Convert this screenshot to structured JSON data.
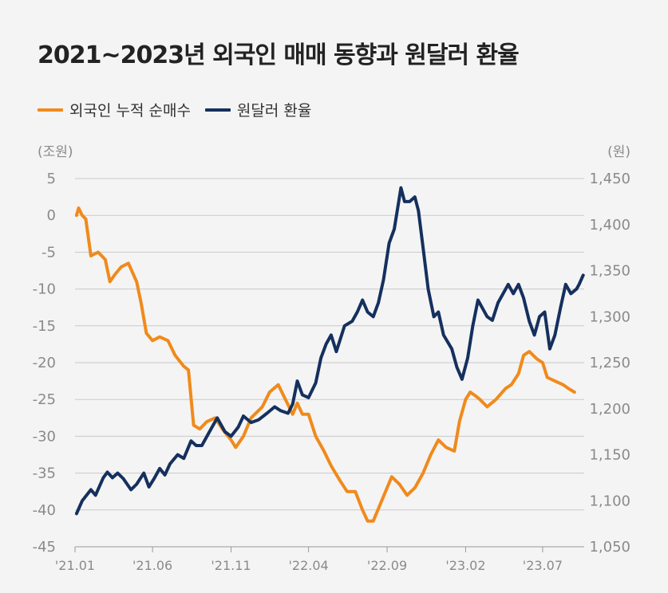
{
  "title": "2021~2023년 외국인 매매 동향과 원달러 환율",
  "chart_data": {
    "type": "line",
    "title": "2021~2023년 외국인 매매 동향과 원달러 환율",
    "legend_position": "top-left",
    "grid": true,
    "x_ticks": [
      "'21.01",
      "'21.06",
      "'21.11",
      "'22.04",
      "'22.09",
      "'23.02",
      "'23.07"
    ],
    "x_range": [
      "2021-01",
      "2023-09"
    ],
    "y_left": {
      "unit": "(조원)",
      "range": [
        -45,
        5
      ],
      "ticks": [
        5,
        0,
        -5,
        -10,
        -15,
        -20,
        -25,
        -30,
        -35,
        -40,
        -45
      ]
    },
    "y_right": {
      "unit": "(원)",
      "range": [
        1050,
        1450
      ],
      "ticks": [
        "1,450",
        "1,400",
        "1,350",
        "1,300",
        "1,250",
        "1,200",
        "1,150",
        "1,100",
        "1,050"
      ],
      "tick_values": [
        1450,
        1400,
        1350,
        1300,
        1250,
        1200,
        1150,
        1100,
        1050
      ]
    },
    "series": [
      {
        "name": "외국인 누적 순매수",
        "axis": "left",
        "color": "#f08a1c",
        "points": [
          [
            "2021-01-04",
            0
          ],
          [
            "2021-01-08",
            1
          ],
          [
            "2021-01-15",
            0
          ],
          [
            "2021-01-22",
            -0.5
          ],
          [
            "2021-02-01",
            -5.5
          ],
          [
            "2021-02-15",
            -5
          ],
          [
            "2021-03-01",
            -6
          ],
          [
            "2021-03-10",
            -9
          ],
          [
            "2021-03-20",
            -8
          ],
          [
            "2021-04-01",
            -7
          ],
          [
            "2021-04-15",
            -6.5
          ],
          [
            "2021-05-01",
            -9
          ],
          [
            "2021-05-10",
            -12
          ],
          [
            "2021-05-20",
            -16
          ],
          [
            "2021-06-01",
            -17
          ],
          [
            "2021-06-15",
            -16.5
          ],
          [
            "2021-07-01",
            -17
          ],
          [
            "2021-07-15",
            -19
          ],
          [
            "2021-08-01",
            -20.5
          ],
          [
            "2021-08-10",
            -21
          ],
          [
            "2021-08-20",
            -28.5
          ],
          [
            "2021-09-01",
            -29
          ],
          [
            "2021-09-15",
            -28
          ],
          [
            "2021-10-01",
            -27.5
          ],
          [
            "2021-10-15",
            -29
          ],
          [
            "2021-11-01",
            -30.5
          ],
          [
            "2021-11-10",
            -31.5
          ],
          [
            "2021-11-25",
            -30
          ],
          [
            "2021-12-10",
            -27.5
          ],
          [
            "2022-01-01",
            -26
          ],
          [
            "2022-01-15",
            -24
          ],
          [
            "2022-02-01",
            -23
          ],
          [
            "2022-02-15",
            -25
          ],
          [
            "2022-03-01",
            -27
          ],
          [
            "2022-03-10",
            -25.5
          ],
          [
            "2022-03-20",
            -27
          ],
          [
            "2022-04-01",
            -27
          ],
          [
            "2022-04-15",
            -30
          ],
          [
            "2022-05-01",
            -32
          ],
          [
            "2022-05-15",
            -34
          ],
          [
            "2022-06-01",
            -36
          ],
          [
            "2022-06-15",
            -37.5
          ],
          [
            "2022-07-01",
            -37.5
          ],
          [
            "2022-07-15",
            -40
          ],
          [
            "2022-07-25",
            -41.5
          ],
          [
            "2022-08-05",
            -41.5
          ],
          [
            "2022-08-20",
            -39
          ],
          [
            "2022-09-01",
            -37
          ],
          [
            "2022-09-10",
            -35.5
          ],
          [
            "2022-09-25",
            -36.5
          ],
          [
            "2022-10-10",
            -38
          ],
          [
            "2022-10-25",
            -37
          ],
          [
            "2022-11-10",
            -35
          ],
          [
            "2022-11-25",
            -32.5
          ],
          [
            "2022-12-10",
            -30.5
          ],
          [
            "2022-12-25",
            -31.5
          ],
          [
            "2023-01-10",
            -32
          ],
          [
            "2023-01-20",
            -28
          ],
          [
            "2023-02-01",
            -25
          ],
          [
            "2023-02-10",
            -24
          ],
          [
            "2023-02-20",
            -24.5
          ],
          [
            "2023-03-01",
            -25
          ],
          [
            "2023-03-15",
            -26
          ],
          [
            "2023-04-01",
            -25
          ],
          [
            "2023-04-20",
            -23.5
          ],
          [
            "2023-05-01",
            -23
          ],
          [
            "2023-05-15",
            -21.5
          ],
          [
            "2023-05-25",
            -19
          ],
          [
            "2023-06-05",
            -18.5
          ],
          [
            "2023-06-20",
            -19.5
          ],
          [
            "2023-07-01",
            -20
          ],
          [
            "2023-07-10",
            -22
          ],
          [
            "2023-07-25",
            -22.5
          ],
          [
            "2023-08-10",
            -23
          ],
          [
            "2023-08-20",
            -23.5
          ],
          [
            "2023-09-01",
            -24
          ]
        ]
      },
      {
        "name": "원달러 환율",
        "axis": "right",
        "color": "#15305e",
        "points": [
          [
            "2021-01-04",
            1086
          ],
          [
            "2021-01-15",
            1100
          ],
          [
            "2021-02-01",
            1112
          ],
          [
            "2021-02-10",
            1106
          ],
          [
            "2021-02-25",
            1125
          ],
          [
            "2021-03-05",
            1131
          ],
          [
            "2021-03-15",
            1125
          ],
          [
            "2021-03-25",
            1130
          ],
          [
            "2021-04-05",
            1124
          ],
          [
            "2021-04-20",
            1112
          ],
          [
            "2021-05-01",
            1118
          ],
          [
            "2021-05-15",
            1130
          ],
          [
            "2021-05-25",
            1115
          ],
          [
            "2021-06-05",
            1125
          ],
          [
            "2021-06-15",
            1135
          ],
          [
            "2021-06-25",
            1128
          ],
          [
            "2021-07-05",
            1140
          ],
          [
            "2021-07-20",
            1150
          ],
          [
            "2021-08-01",
            1146
          ],
          [
            "2021-08-15",
            1165
          ],
          [
            "2021-08-25",
            1160
          ],
          [
            "2021-09-05",
            1160
          ],
          [
            "2021-09-15",
            1170
          ],
          [
            "2021-09-25",
            1180
          ],
          [
            "2021-10-05",
            1190
          ],
          [
            "2021-10-20",
            1175
          ],
          [
            "2021-11-01",
            1170
          ],
          [
            "2021-11-15",
            1180
          ],
          [
            "2021-11-25",
            1192
          ],
          [
            "2021-12-10",
            1185
          ],
          [
            "2021-12-25",
            1188
          ],
          [
            "2022-01-10",
            1195
          ],
          [
            "2022-01-25",
            1202
          ],
          [
            "2022-02-05",
            1198
          ],
          [
            "2022-02-20",
            1195
          ],
          [
            "2022-03-01",
            1205
          ],
          [
            "2022-03-10",
            1230
          ],
          [
            "2022-03-20",
            1215
          ],
          [
            "2022-04-01",
            1212
          ],
          [
            "2022-04-15",
            1228
          ],
          [
            "2022-04-25",
            1255
          ],
          [
            "2022-05-05",
            1270
          ],
          [
            "2022-05-15",
            1280
          ],
          [
            "2022-05-25",
            1262
          ],
          [
            "2022-06-10",
            1290
          ],
          [
            "2022-06-25",
            1295
          ],
          [
            "2022-07-05",
            1305
          ],
          [
            "2022-07-15",
            1318
          ],
          [
            "2022-07-25",
            1305
          ],
          [
            "2022-08-05",
            1300
          ],
          [
            "2022-08-15",
            1315
          ],
          [
            "2022-08-25",
            1340
          ],
          [
            "2022-09-05",
            1380
          ],
          [
            "2022-09-15",
            1395
          ],
          [
            "2022-09-28",
            1440
          ],
          [
            "2022-10-05",
            1425
          ],
          [
            "2022-10-15",
            1425
          ],
          [
            "2022-10-25",
            1430
          ],
          [
            "2022-11-01",
            1415
          ],
          [
            "2022-11-10",
            1375
          ],
          [
            "2022-11-20",
            1330
          ],
          [
            "2022-12-01",
            1300
          ],
          [
            "2022-12-10",
            1305
          ],
          [
            "2022-12-20",
            1280
          ],
          [
            "2023-01-05",
            1265
          ],
          [
            "2023-01-15",
            1245
          ],
          [
            "2023-01-25",
            1232
          ],
          [
            "2023-02-05",
            1255
          ],
          [
            "2023-02-15",
            1290
          ],
          [
            "2023-02-25",
            1318
          ],
          [
            "2023-03-05",
            1310
          ],
          [
            "2023-03-15",
            1300
          ],
          [
            "2023-03-25",
            1296
          ],
          [
            "2023-04-05",
            1315
          ],
          [
            "2023-04-15",
            1325
          ],
          [
            "2023-04-25",
            1335
          ],
          [
            "2023-05-05",
            1325
          ],
          [
            "2023-05-15",
            1335
          ],
          [
            "2023-05-25",
            1320
          ],
          [
            "2023-06-05",
            1295
          ],
          [
            "2023-06-15",
            1280
          ],
          [
            "2023-06-25",
            1300
          ],
          [
            "2023-07-05",
            1305
          ],
          [
            "2023-07-15",
            1265
          ],
          [
            "2023-07-25",
            1280
          ],
          [
            "2023-08-05",
            1310
          ],
          [
            "2023-08-15",
            1335
          ],
          [
            "2023-08-25",
            1325
          ],
          [
            "2023-09-05",
            1330
          ],
          [
            "2023-09-10",
            1335
          ],
          [
            "2023-09-18",
            1345
          ]
        ]
      }
    ]
  }
}
